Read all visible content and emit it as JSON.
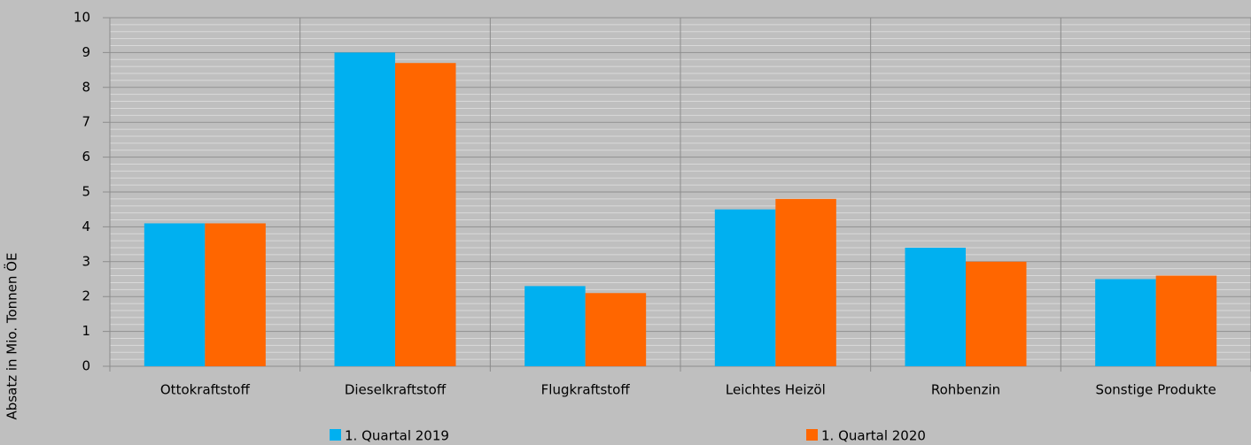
{
  "chart_data": {
    "type": "bar",
    "y_label": "Absatz in Mio. Tonnen ÖE",
    "categories": [
      "Ottokraftstoff",
      "Dieselkraftstoff",
      "Flugkraftstoff",
      "Leichtes Heizöl",
      "Rohbenzin",
      "Sonstige Produkte"
    ],
    "series": [
      {
        "name": "1. Quartal 2019",
        "color": "#00b0f0",
        "values": [
          4.1,
          9.0,
          2.3,
          4.5,
          3.4,
          2.5
        ]
      },
      {
        "name": "1. Quartal 2020",
        "color": "#ff6600",
        "values": [
          4.1,
          8.7,
          2.1,
          4.8,
          3.0,
          2.6
        ]
      }
    ],
    "ylim": [
      0,
      10
    ],
    "yticks": [
      0,
      1,
      2,
      3,
      4,
      5,
      6,
      7,
      8,
      9,
      10
    ],
    "grid": true
  }
}
